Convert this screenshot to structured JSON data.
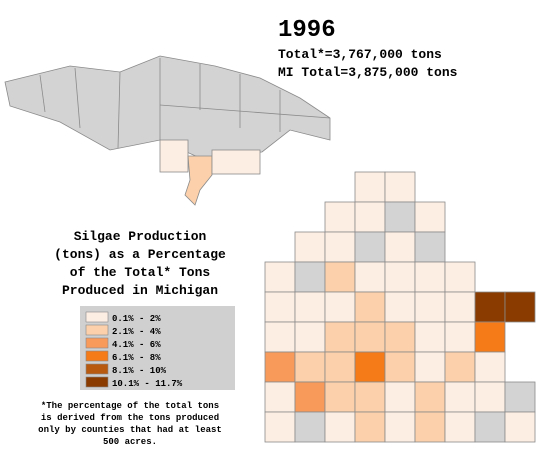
{
  "title": "1996",
  "totals": [
    "Total*=3,767,000 tons",
    "MI Total=3,875,000 tons"
  ],
  "caption": [
    "Silgae Production",
    "(tons) as a Percentage",
    "of the Total* Tons",
    "Produced in Michigan"
  ],
  "legend": {
    "items": [
      {
        "label": "0.1% - 2%",
        "color": "#fdeee4"
      },
      {
        "label": "2.1% - 4%",
        "color": "#fbd0aa"
      },
      {
        "label": "4.1% - 6%",
        "color": "#f79a5a"
      },
      {
        "label": "6.1% - 8%",
        "color": "#f57a18"
      },
      {
        "label": "8.1% - 10%",
        "color": "#b85a10"
      },
      {
        "label": "10.1% - 11.7%",
        "color": "#8a3c00"
      }
    ]
  },
  "footnote": [
    "*The percentage of the total tons",
    "is derived from the tons produced",
    "only by counties that had at least",
    "500 acres."
  ]
}
